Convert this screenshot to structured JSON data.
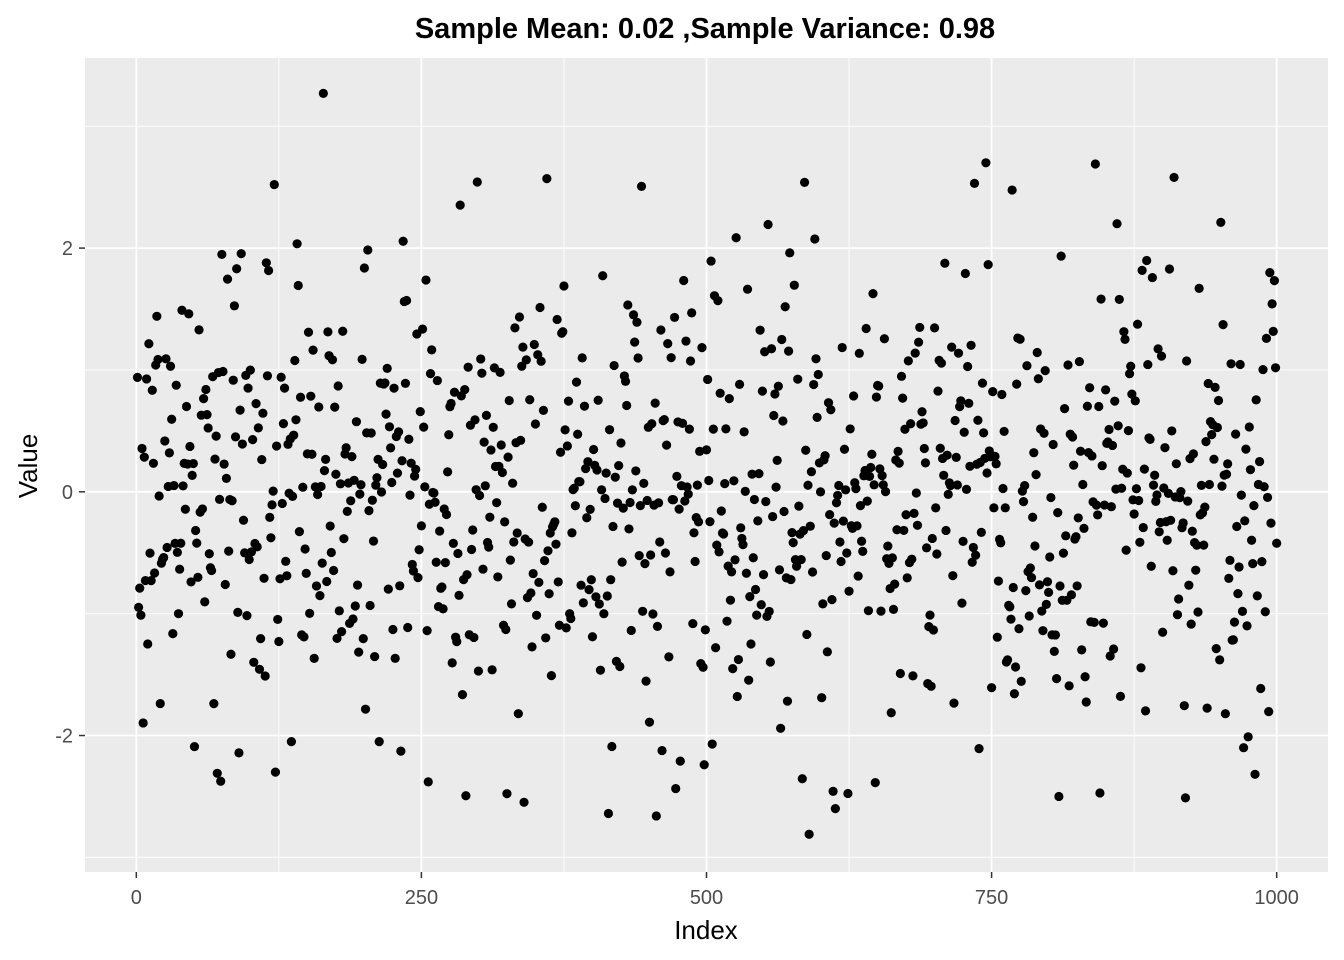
{
  "chart_data": {
    "type": "scatter",
    "title": "Sample Mean: 0.02 ,Sample Variance: 0.98",
    "xlabel": "Index",
    "ylabel": "Value",
    "xlim": [
      -45,
      1045
    ],
    "ylim": [
      -3.12,
      3.56
    ],
    "x_ticks": [
      0,
      250,
      500,
      750,
      1000
    ],
    "x_tick_labels": [
      "0",
      "250",
      "500",
      "750",
      "1000"
    ],
    "y_ticks": [
      -2,
      0,
      2
    ],
    "y_tick_labels": [
      "-2",
      "0",
      "2"
    ],
    "grid": true,
    "legend": "none",
    "point_color": "#000000",
    "panel_background": "#ebebeb",
    "generator": {
      "n": 1000,
      "mean": 0.02,
      "variance": 0.98
    },
    "highlights": [
      {
        "x": 164,
        "y": 3.27
      },
      {
        "x": 590,
        "y": -2.81
      },
      {
        "x": 745,
        "y": 2.7
      },
      {
        "x": 841,
        "y": 2.69
      },
      {
        "x": 910,
        "y": 2.58
      },
      {
        "x": 360,
        "y": 2.57
      },
      {
        "x": 809,
        "y": -2.5
      },
      {
        "x": 414,
        "y": -2.64
      },
      {
        "x": 456,
        "y": -2.66
      },
      {
        "x": 613,
        "y": -2.6
      },
      {
        "x": 71,
        "y": -2.31
      },
      {
        "x": 971,
        "y": -2.1
      },
      {
        "x": 136,
        "y": -2.05
      },
      {
        "x": 505,
        "y": -2.07
      }
    ]
  }
}
